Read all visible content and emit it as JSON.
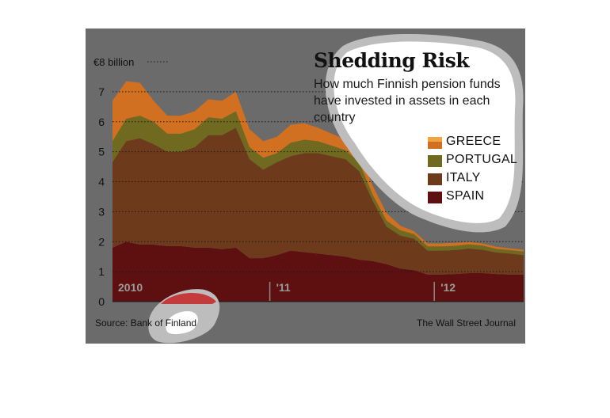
{
  "chart_data": {
    "type": "area",
    "stacked": true,
    "title": "Shedding Risk",
    "subtitle": "How much Finnish pension funds have invested in assets in each country",
    "y_unit_label": "€8 billion",
    "ylim": [
      0,
      8
    ],
    "y_ticks": [
      0,
      1,
      2,
      3,
      4,
      5,
      6,
      7,
      8
    ],
    "y_tick_labels": [
      "0",
      "1",
      "2",
      "3",
      "4",
      "5",
      "6",
      "7"
    ],
    "x_tick_labels": [
      {
        "label": "2010",
        "index": 0
      },
      {
        "label": "'11",
        "index": 12
      },
      {
        "label": "'12",
        "index": 24
      }
    ],
    "x_months": [
      "2010-01",
      "2010-02",
      "2010-03",
      "2010-04",
      "2010-05",
      "2010-06",
      "2010-07",
      "2010-08",
      "2010-09",
      "2010-10",
      "2010-11",
      "2010-12",
      "2011-01",
      "2011-02",
      "2011-03",
      "2011-04",
      "2011-05",
      "2011-06",
      "2011-07",
      "2011-08",
      "2011-09",
      "2011-10",
      "2011-11",
      "2011-12",
      "2012-01",
      "2012-02",
      "2012-03",
      "2012-04",
      "2012-05",
      "2012-06",
      "2012-07"
    ],
    "grid": true,
    "legend_position": "top-right",
    "series": [
      {
        "name": "SPAIN",
        "color": "#5e1010",
        "values": [
          1.8,
          2.0,
          1.9,
          1.9,
          1.85,
          1.85,
          1.8,
          1.8,
          1.75,
          1.8,
          1.45,
          1.45,
          1.55,
          1.7,
          1.65,
          1.6,
          1.55,
          1.5,
          1.4,
          1.35,
          1.25,
          1.1,
          1.05,
          0.9,
          0.9,
          0.92,
          0.95,
          0.95,
          0.92,
          0.9,
          0.9
        ]
      },
      {
        "name": "ITALY",
        "color": "#6e3a1c",
        "values": [
          2.85,
          3.35,
          3.55,
          3.35,
          3.15,
          3.15,
          3.35,
          3.75,
          3.8,
          4.0,
          3.3,
          2.95,
          3.1,
          3.15,
          3.3,
          3.35,
          3.3,
          3.25,
          2.95,
          2.0,
          1.25,
          1.1,
          1.05,
          0.8,
          0.8,
          0.8,
          0.82,
          0.78,
          0.72,
          0.7,
          0.65
        ]
      },
      {
        "name": "PORTUGAL",
        "color": "#6f6a20",
        "values": [
          0.7,
          0.75,
          0.75,
          0.75,
          0.6,
          0.6,
          0.6,
          0.6,
          0.55,
          0.55,
          0.4,
          0.4,
          0.3,
          0.45,
          0.45,
          0.4,
          0.35,
          0.3,
          0.3,
          0.2,
          0.2,
          0.18,
          0.15,
          0.14,
          0.14,
          0.14,
          0.14,
          0.14,
          0.12,
          0.12,
          0.12
        ]
      },
      {
        "name": "GREECE",
        "color": "#d07020",
        "values": [
          1.35,
          1.25,
          1.1,
          0.7,
          0.6,
          0.6,
          0.6,
          0.6,
          0.6,
          0.65,
          0.6,
          0.55,
          0.55,
          0.6,
          0.55,
          0.45,
          0.4,
          0.35,
          0.3,
          0.3,
          0.25,
          0.15,
          0.1,
          0.1,
          0.1,
          0.1,
          0.08,
          0.07,
          0.07,
          0.06,
          0.06
        ]
      }
    ],
    "plot_colors": {
      "Spain": "#5e1010",
      "Italy": "#6e3a1c",
      "Portugal": "#6f6a20",
      "Greece": "#d07020",
      "Greece_top": "#8a2a10"
    }
  },
  "source": "Source: Bank of Finland",
  "publisher": "The Wall Street Journal",
  "background_color": "#6b6b6b"
}
